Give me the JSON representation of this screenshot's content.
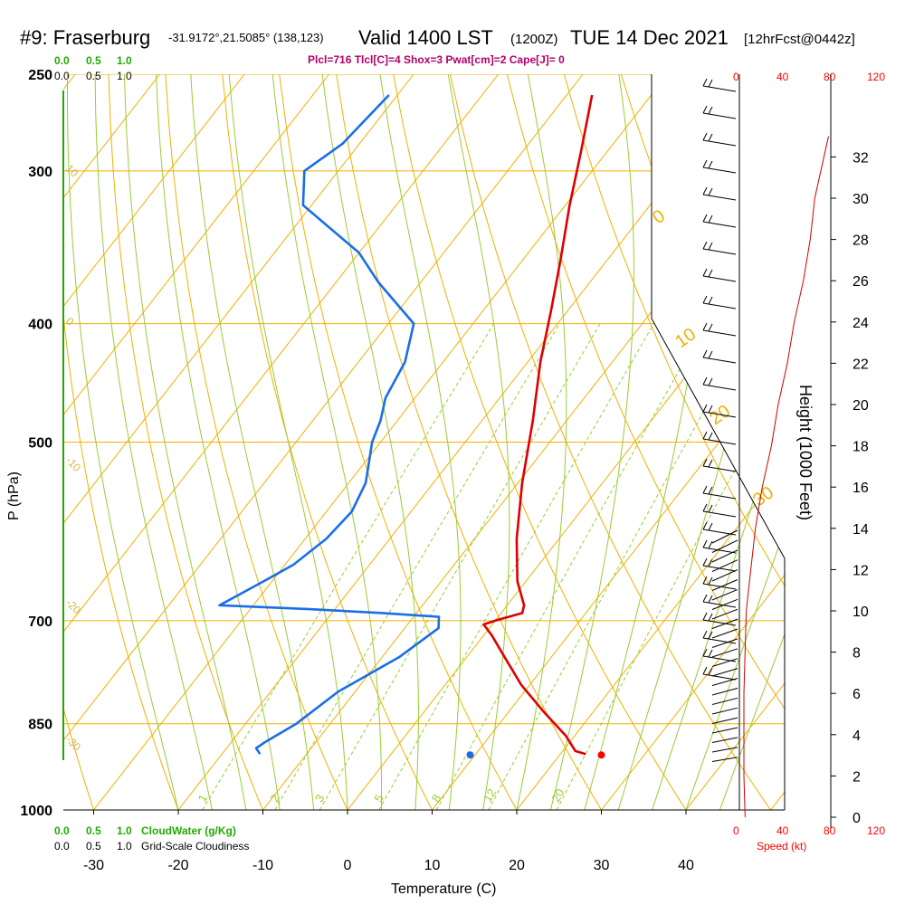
{
  "header": {
    "station_label": "#9: Fraserburg",
    "coords": "-31.9172°,21.5085° (138,123)",
    "valid": "Valid 1400 LST",
    "valid_utc": "(1200Z)",
    "date": "TUE 14 Dec 2021",
    "forecast": "[12hrFcst@0442z]",
    "stats": "Plcl=716 Tlcl[C]=4 Shox=3 Pwat[cm]=2 Cape[J]= 0"
  },
  "legend": {
    "cloudwater_label": "CloudWater (g/Kg)",
    "cloudiness_label": "Grid-Scale Cloudiness",
    "scale_ticks": [
      "0.0",
      "0.5",
      "1.0"
    ],
    "speed_label": "Speed (kt)",
    "speed_ticks": [
      "0",
      "40",
      "80",
      "120"
    ]
  },
  "colors": {
    "temperature": "#dd0000",
    "dewpoint": "#1a6ee8",
    "isotherm": "#f0b000",
    "dry_adiabat": "#f0b000",
    "moist_adiabat": "#99cc33",
    "mixing_ratio": "#99cc33",
    "cloudwater": "#22aa00",
    "wind_speed": "#cc0000"
  },
  "chart_data": {
    "type": "line",
    "subtype": "skew-t log-p sounding",
    "xlabel": "Temperature (C)",
    "ylabel": "P (hPa)",
    "y2label": "Height (1000 Feet)",
    "x_ticks": [
      -30,
      -20,
      -10,
      0,
      10,
      20,
      30,
      40
    ],
    "xlim": [
      -34,
      36
    ],
    "pressure_ticks": [
      250,
      300,
      400,
      500,
      700,
      850,
      1000
    ],
    "plim": [
      250,
      1000
    ],
    "height_ticks": [
      0,
      2,
      4,
      6,
      8,
      10,
      12,
      14,
      16,
      18,
      20,
      22,
      24,
      26,
      28,
      30,
      32
    ],
    "isotherm_labels": [
      {
        "text": "0",
        "t": 0
      },
      {
        "text": "10",
        "t": 10
      },
      {
        "text": "20",
        "t": 20
      },
      {
        "text": "30",
        "t": 30
      }
    ],
    "left_edge_labels": [
      {
        "text": "10",
        "p": 300
      },
      {
        "text": "0",
        "p": 400
      },
      {
        "text": "-10",
        "p": 520
      },
      {
        "text": "-20",
        "p": 680
      },
      {
        "text": "-30",
        "p": 880
      }
    ],
    "mixing_ratio_labels": [
      "1",
      "2",
      "3",
      "5",
      "8",
      "12",
      "20"
    ],
    "mixing_ratios": [
      1,
      2,
      3,
      5,
      8,
      12,
      20
    ],
    "series": [
      {
        "name": "temperature",
        "points": [
          [
            -37,
            260
          ],
          [
            -33,
            290
          ],
          [
            -29.5,
            320
          ],
          [
            -25.5,
            355
          ],
          [
            -22,
            390
          ],
          [
            -18.5,
            430
          ],
          [
            -14,
            480
          ],
          [
            -9.5,
            540
          ],
          [
            -5,
            600
          ],
          [
            -1,
            650
          ],
          [
            2,
            680
          ],
          [
            2.5,
            690
          ],
          [
            0,
            700
          ],
          [
            -1,
            705
          ],
          [
            1,
            720
          ],
          [
            4.5,
            750
          ],
          [
            9,
            790
          ],
          [
            14,
            830
          ],
          [
            19,
            870
          ],
          [
            21.5,
            895
          ],
          [
            23,
            900
          ]
        ],
        "surface_marker": [
          30,
          900
        ]
      },
      {
        "name": "dewpoint",
        "points": [
          [
            -61,
            260
          ],
          [
            -62,
            285
          ],
          [
            -64,
            300
          ],
          [
            -61,
            320
          ],
          [
            -50,
            350
          ],
          [
            -45,
            370
          ],
          [
            -37,
            400
          ],
          [
            -34.5,
            430
          ],
          [
            -33.5,
            460
          ],
          [
            -32,
            480
          ],
          [
            -31,
            500
          ],
          [
            -28,
            540
          ],
          [
            -27,
            570
          ],
          [
            -27.5,
            600
          ],
          [
            -29,
            630
          ],
          [
            -31,
            650
          ],
          [
            -33,
            670
          ],
          [
            -34,
            680
          ],
          [
            -23,
            685
          ],
          [
            -14,
            690
          ],
          [
            -7,
            695
          ],
          [
            -6,
            710
          ],
          [
            -8,
            750
          ],
          [
            -12,
            800
          ],
          [
            -14,
            850
          ],
          [
            -16,
            880
          ],
          [
            -16.5,
            890
          ],
          [
            -15.5,
            900
          ]
        ],
        "surface_marker": [
          14.5,
          900
        ]
      }
    ],
    "wind_profile": {
      "name": "wind speed",
      "speed_range": [
        0,
        120
      ],
      "points": [
        [
          5,
          0
        ],
        [
          4,
          2
        ],
        [
          4,
          4
        ],
        [
          4,
          6
        ],
        [
          5,
          8
        ],
        [
          6,
          10
        ],
        [
          10,
          12
        ],
        [
          14,
          14
        ],
        [
          20,
          16
        ],
        [
          28,
          18
        ],
        [
          34,
          20
        ],
        [
          42,
          22
        ],
        [
          48,
          24
        ],
        [
          56,
          26
        ],
        [
          62,
          28
        ],
        [
          66,
          30
        ],
        [
          74,
          32
        ],
        [
          78,
          33
        ]
      ]
    }
  }
}
